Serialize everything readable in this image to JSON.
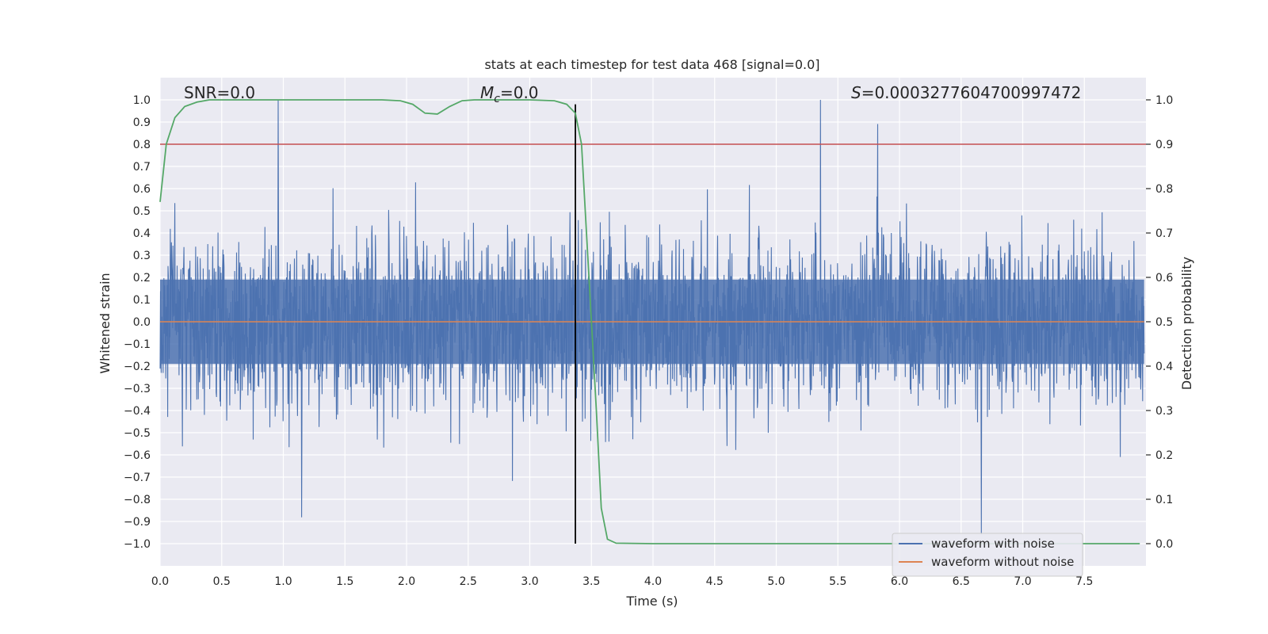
{
  "chart_data": {
    "type": "line",
    "title": "stats at each timestep for test data 468 [signal=0.0]",
    "xlabel": "Time (s)",
    "ylabel_left": "Whitened strain",
    "ylabel_right": "Detection probability",
    "xlim": [
      0.0,
      8.0
    ],
    "ylim_left": [
      -1.1,
      1.1
    ],
    "ylim_right": [
      -0.05,
      1.05
    ],
    "xticks": [
      0.0,
      0.5,
      1.0,
      1.5,
      2.0,
      2.5,
      3.0,
      3.5,
      4.0,
      4.5,
      5.0,
      5.5,
      6.0,
      6.5,
      7.0,
      7.5
    ],
    "xtick_labels": [
      "0.0",
      "0.5",
      "1.0",
      "1.5",
      "2.0",
      "2.5",
      "3.0",
      "3.5",
      "4.0",
      "4.5",
      "5.0",
      "5.5",
      "6.0",
      "6.5",
      "7.0",
      "7.5"
    ],
    "yticks_left": [
      1.0,
      0.9,
      0.8,
      0.7,
      0.6,
      0.5,
      0.4,
      0.3,
      0.2,
      0.1,
      0.0,
      -0.1,
      -0.2,
      -0.3,
      -0.4,
      -0.5,
      -0.6,
      -0.7,
      -0.8,
      -0.9,
      -1.0
    ],
    "ytick_labels_left": [
      "1.0",
      "0.9",
      "0.8",
      "0.7",
      "0.6",
      "0.5",
      "0.4",
      "0.3",
      "0.2",
      "0.1",
      "0.0",
      "−0.1",
      "−0.2",
      "−0.3",
      "−0.4",
      "−0.5",
      "−0.6",
      "−0.7",
      "−0.8",
      "−0.9",
      "−1.0"
    ],
    "yticks_right": [
      1.0,
      0.9,
      0.8,
      0.7,
      0.6,
      0.5,
      0.4,
      0.3,
      0.2,
      0.1,
      0.0
    ],
    "ytick_labels_right": [
      "1.0",
      "0.9",
      "0.8",
      "0.7",
      "0.6",
      "0.5",
      "0.4",
      "0.3",
      "0.2",
      "0.1",
      "0.0"
    ],
    "annotations": {
      "snr": "SNR=0.0",
      "mc_symbol": "M",
      "mc_sub": "c",
      "mc_value": "=0.0",
      "s_symbol": "S",
      "s_value": "=0.0003277604700997472"
    },
    "legend": {
      "position": "lower-right",
      "entries": [
        {
          "label": "waveform with noise",
          "color": "#4c72b0"
        },
        {
          "label": "waveform without noise",
          "color": "#dd8452"
        }
      ]
    },
    "series": [
      {
        "name": "waveform with noise",
        "axis": "left",
        "color": "#4c72b0",
        "description": "noise amplitude mostly within ±0.6 with peaks near ±1.0"
      },
      {
        "name": "waveform without noise",
        "axis": "left",
        "color": "#dd8452",
        "values_constant": 0.0
      },
      {
        "name": "detection probability",
        "axis": "right",
        "color": "#55a868",
        "x": [
          0.0,
          0.05,
          0.12,
          0.2,
          0.3,
          0.4,
          0.5,
          1.0,
          1.5,
          1.8,
          1.95,
          2.05,
          2.15,
          2.25,
          2.35,
          2.45,
          2.55,
          2.7,
          3.0,
          3.2,
          3.3,
          3.37,
          3.42,
          3.47,
          3.5,
          3.54,
          3.58,
          3.63,
          3.7,
          4.0,
          5.0,
          6.0,
          7.0,
          7.95
        ],
        "values": [
          0.77,
          0.9,
          0.96,
          0.985,
          0.995,
          1.0,
          1.0,
          1.0,
          1.0,
          1.0,
          0.998,
          0.99,
          0.97,
          0.968,
          0.985,
          0.998,
          1.0,
          1.0,
          1.0,
          0.998,
          0.99,
          0.97,
          0.9,
          0.65,
          0.5,
          0.3,
          0.08,
          0.01,
          0.001,
          0.0,
          0.0,
          0.0,
          0.0,
          0.0
        ]
      }
    ],
    "threshold": {
      "axis": "right",
      "value": 0.9,
      "color": "#c44e52"
    },
    "vertical_marker": {
      "x": 3.37,
      "color": "#000000"
    }
  }
}
